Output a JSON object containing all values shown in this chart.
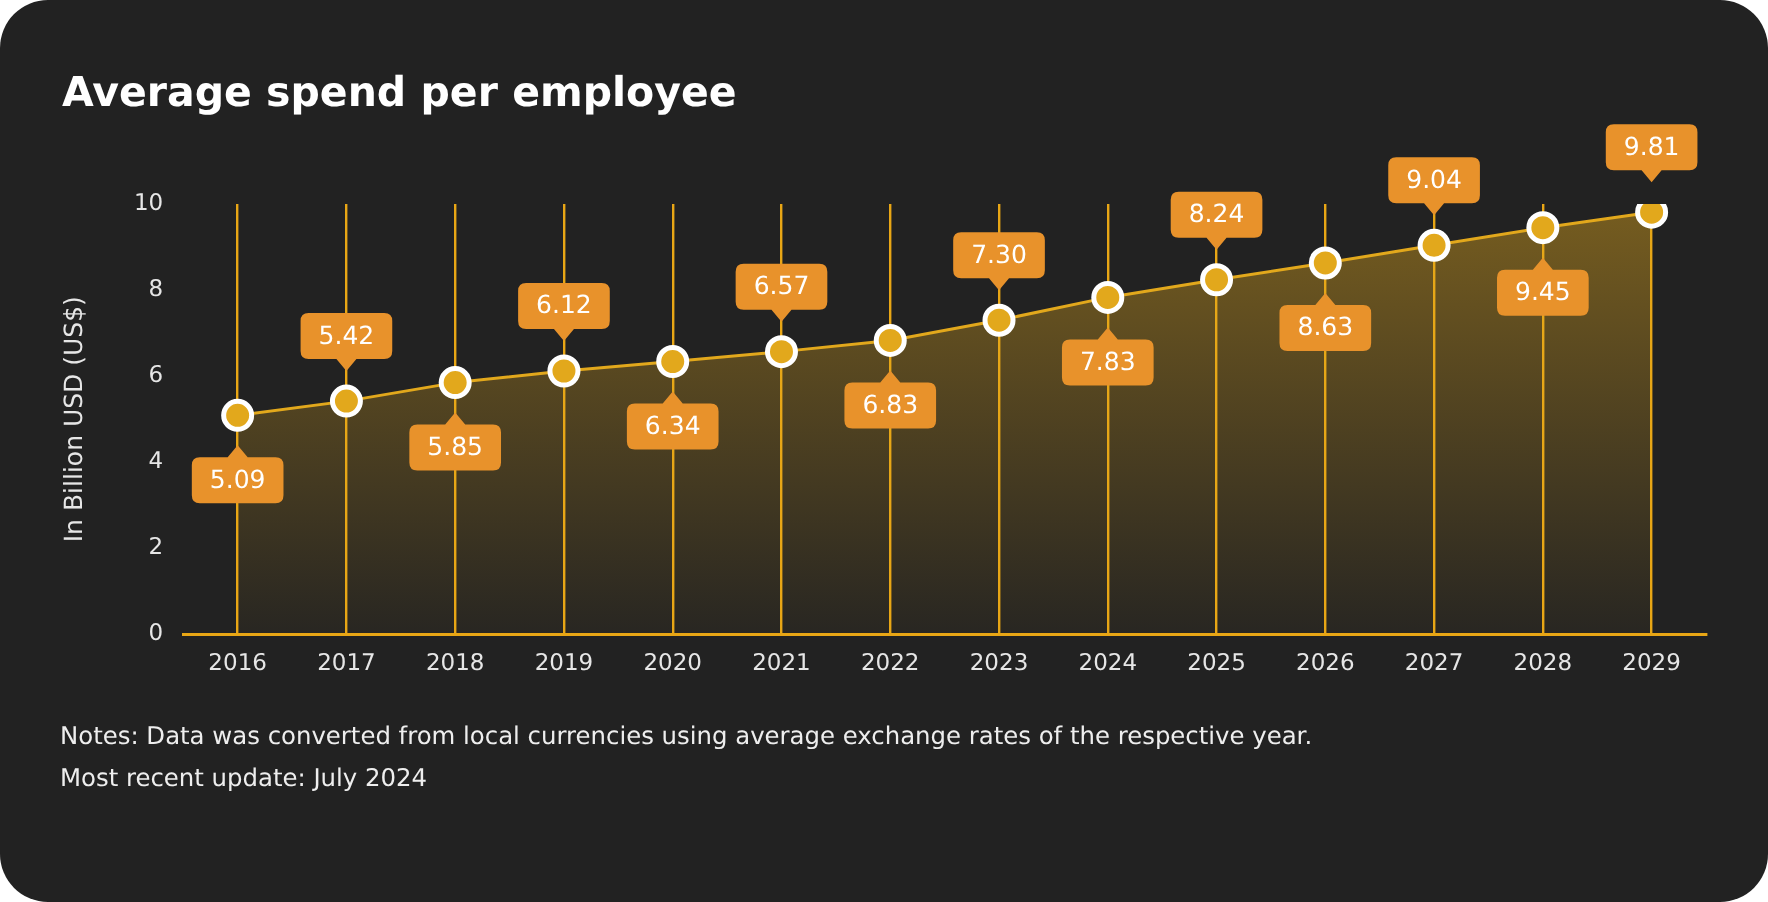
{
  "chart_data": {
    "type": "area",
    "title": "Average spend per employee",
    "ylabel": "In Billion USD (US$)",
    "categories": [
      "2016",
      "2017",
      "2018",
      "2019",
      "2020",
      "2021",
      "2022",
      "2023",
      "2024",
      "2025",
      "2026",
      "2027",
      "2028",
      "2029"
    ],
    "series": [
      {
        "color": "#e2a81c",
        "values": [
          5.09,
          5.42,
          5.85,
          6.12,
          6.34,
          6.57,
          6.83,
          7.3,
          7.83,
          8.24,
          8.63,
          9.04,
          9.45,
          9.81
        ],
        "value_labels": [
          "5.09",
          "5.42",
          "5.85",
          "6.12",
          "6.34",
          "6.57",
          "6.83",
          "7.30",
          "7.83",
          "8.24",
          "8.63",
          "9.04",
          "9.45",
          "9.81"
        ]
      }
    ],
    "ylim": [
      0,
      10
    ],
    "yticks": [
      0,
      2,
      4,
      6,
      8,
      10
    ],
    "grid": "x",
    "legend": false,
    "marker": "circle",
    "annotations": [
      "Notes: Data was converted from local currencies using average exchange rates of the respective year.",
      "Most recent update: July 2024"
    ]
  }
}
